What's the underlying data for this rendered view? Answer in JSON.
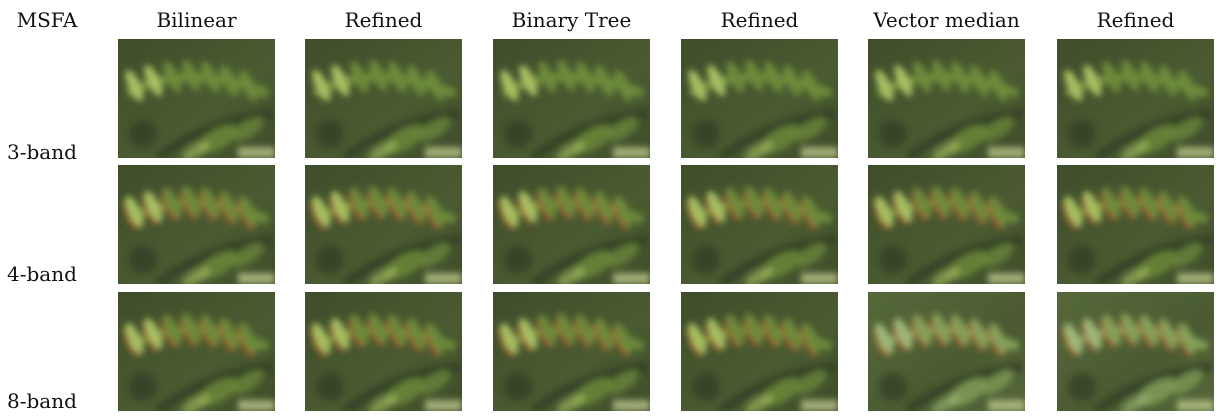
{
  "corner_label": "MSFA",
  "columns": [
    "Bilinear",
    "Refined",
    "Binary Tree",
    "Refined",
    "Vector median",
    "Refined"
  ],
  "rows": [
    {
      "label": "3-band",
      "fringe": "none"
    },
    {
      "label": "4-band",
      "fringe": "chromatic-red"
    },
    {
      "label": "8-band",
      "fringe": "chromatic-red"
    }
  ],
  "palette": {
    "background_dark": "#3f4d2a",
    "foliage": "#6d8a3a",
    "highlight": "#a7bf62",
    "fringe_red": "#b4552f"
  }
}
